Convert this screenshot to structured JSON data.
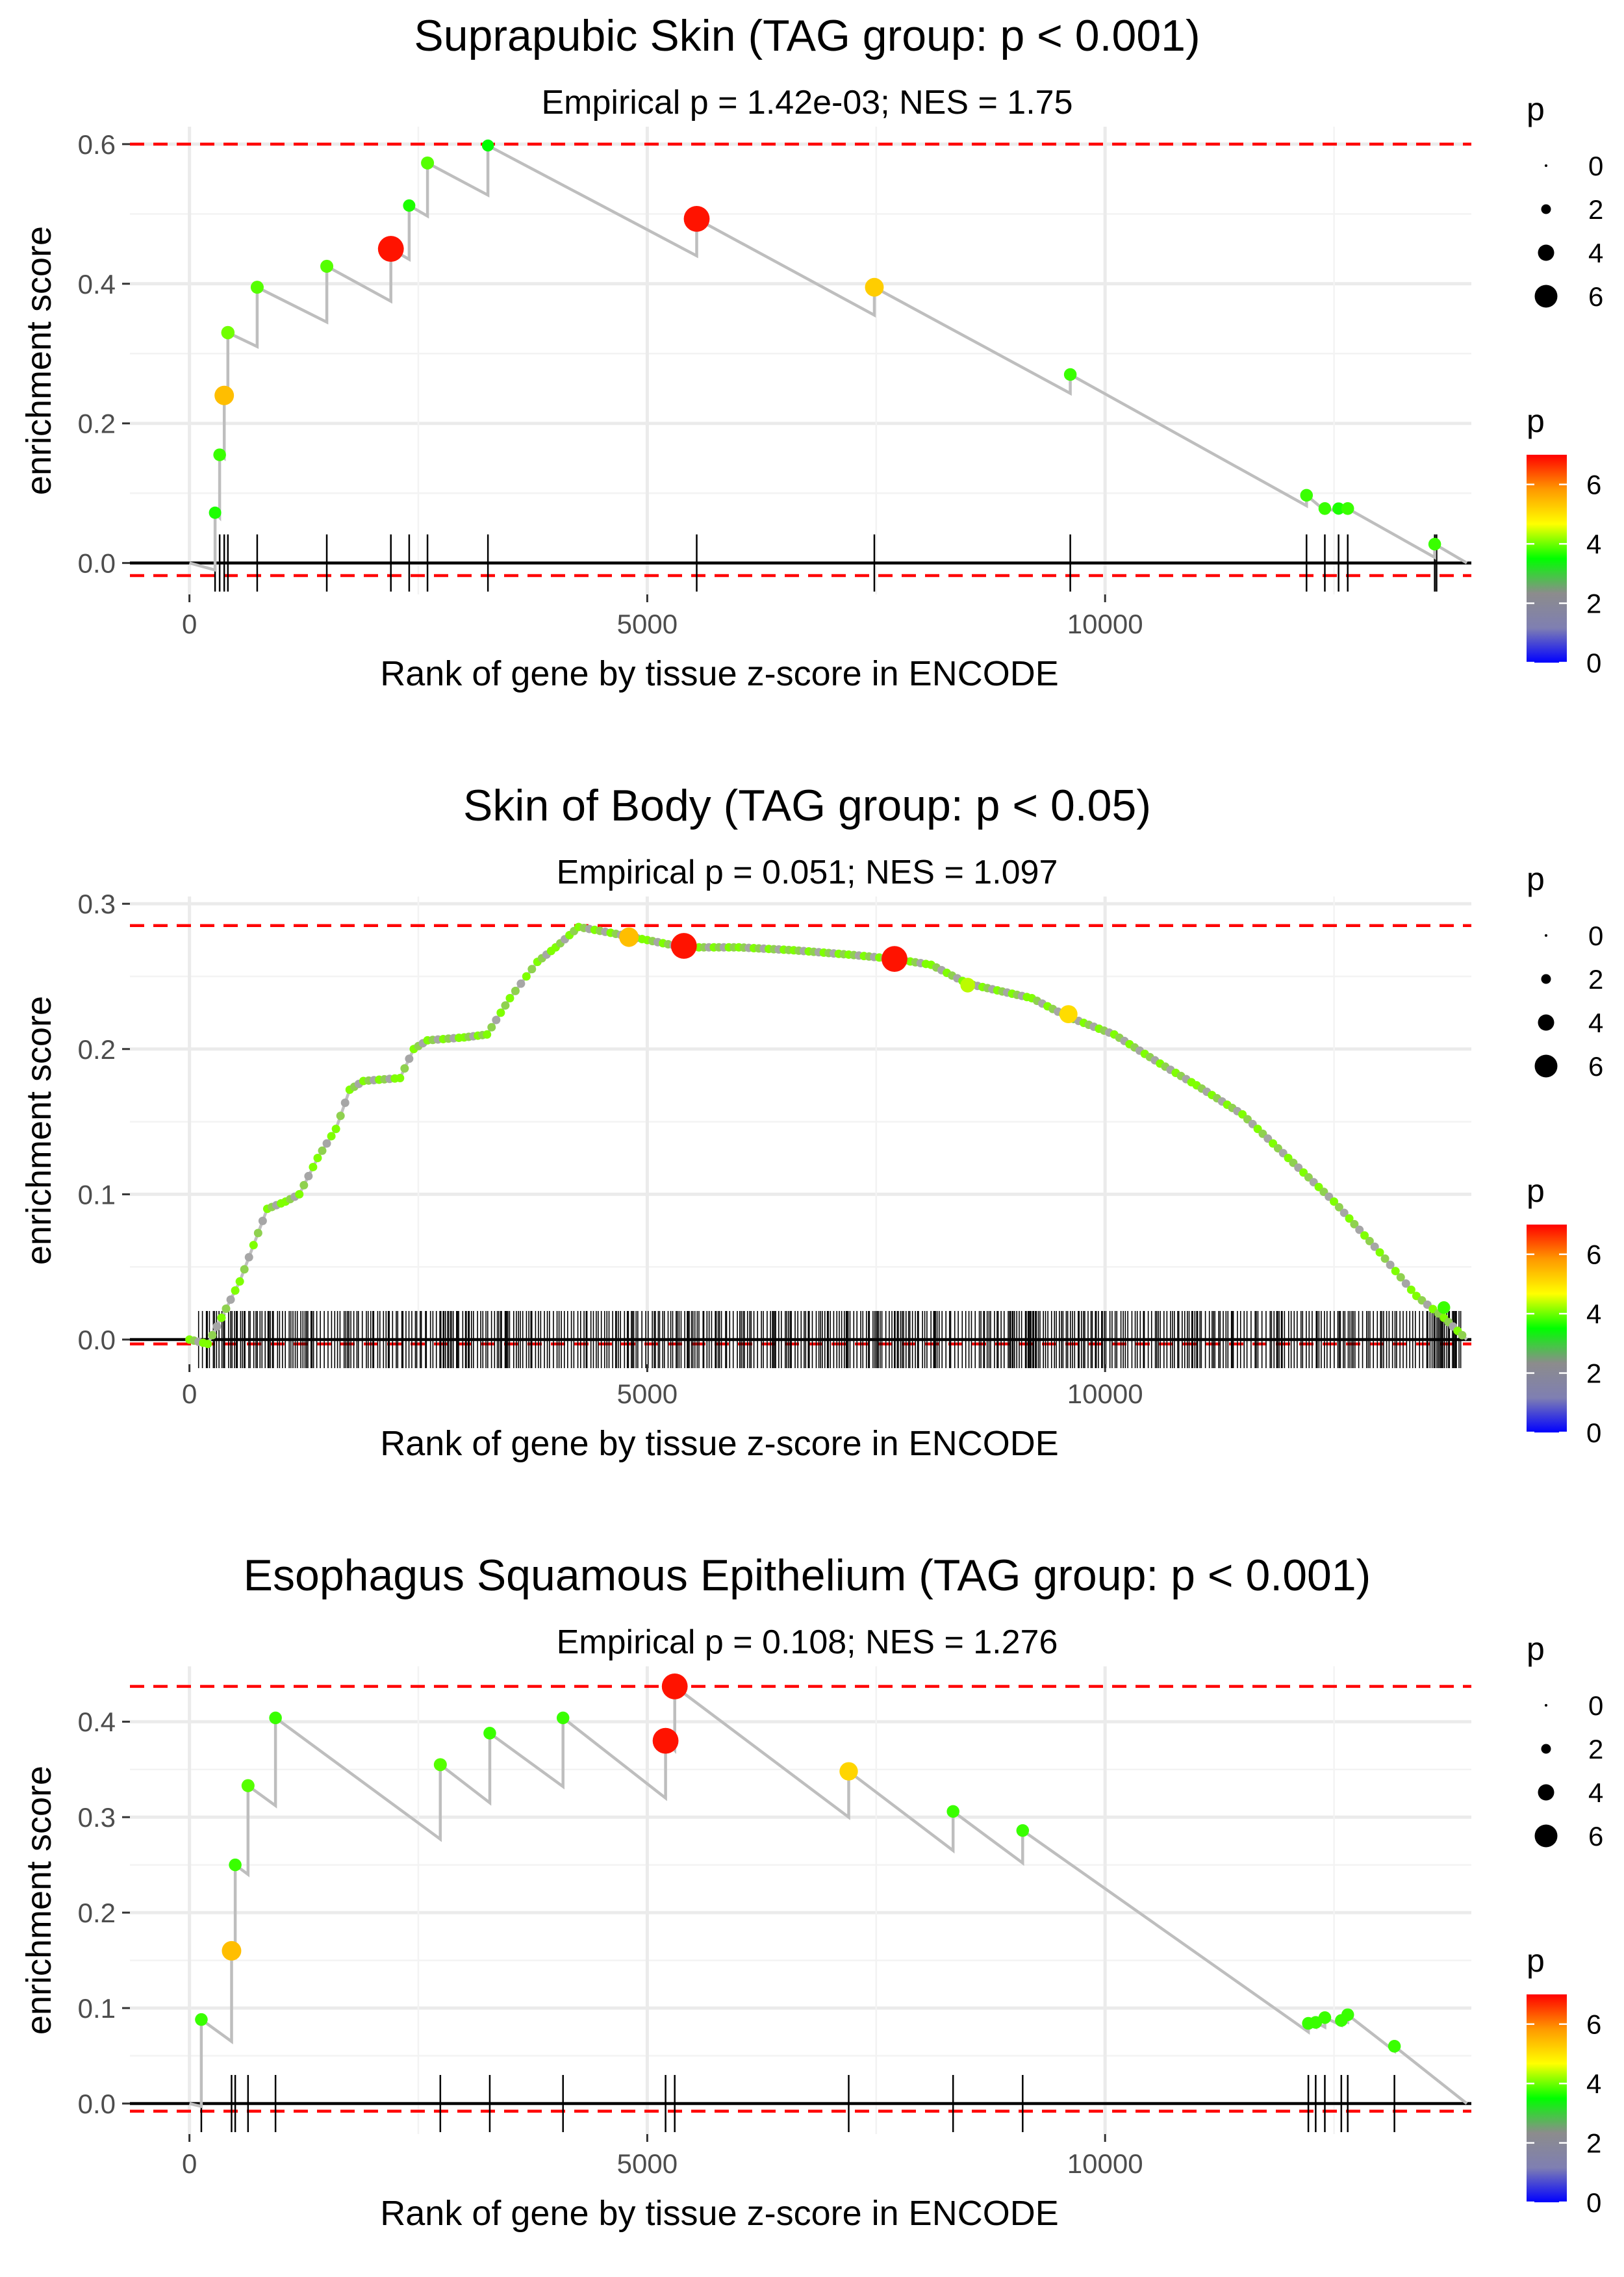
{
  "chart_data": [
    {
      "type": "line",
      "title": "Suprapubic Skin (TAG group: p < 0.001)",
      "subtitle": "Empirical p = 1.42e-03; NES = 1.75",
      "xlabel": "Rank of gene by tissue z-score in ENCODE",
      "ylabel": "enrichment score",
      "xlim": [
        -650,
        14000
      ],
      "ylim": [
        -0.045,
        0.625
      ],
      "xticks": [
        0,
        5000,
        10000
      ],
      "xtick_labels": [
        "0",
        "5000",
        "10000"
      ],
      "yticks": [
        0.0,
        0.2,
        0.4,
        0.6
      ],
      "ytick_labels": [
        "0.0",
        "0.2",
        "0.4",
        "0.6"
      ],
      "max_es": 0.6,
      "min_es": -0.018,
      "running_es": [
        [
          0,
          0
        ],
        [
          280,
          -0.01
        ],
        [
          280,
          0.072
        ],
        [
          330,
          0.065
        ],
        [
          330,
          0.155
        ],
        [
          380,
          0.15
        ],
        [
          380,
          0.24
        ],
        [
          420,
          0.235
        ],
        [
          420,
          0.33
        ],
        [
          740,
          0.31
        ],
        [
          740,
          0.395
        ],
        [
          1500,
          0.345
        ],
        [
          1500,
          0.425
        ],
        [
          2200,
          0.375
        ],
        [
          2200,
          0.45
        ],
        [
          2400,
          0.435
        ],
        [
          2400,
          0.512
        ],
        [
          2600,
          0.497
        ],
        [
          2600,
          0.573
        ],
        [
          3260,
          0.527
        ],
        [
          3260,
          0.598
        ],
        [
          5540,
          0.44
        ],
        [
          5540,
          0.493
        ],
        [
          7480,
          0.355
        ],
        [
          7480,
          0.395
        ],
        [
          9620,
          0.243
        ],
        [
          9620,
          0.27
        ],
        [
          12200,
          0.082
        ],
        [
          12200,
          0.097
        ],
        [
          12400,
          0.075
        ],
        [
          12400,
          0.078
        ],
        [
          12550,
          0.074
        ],
        [
          12550,
          0.078
        ],
        [
          12650,
          0.075
        ],
        [
          12650,
          0.078
        ],
        [
          13600,
          0.008
        ],
        [
          13600,
          0.027
        ],
        [
          13950,
          0.0
        ]
      ],
      "points": [
        {
          "x": 280,
          "y": 0.072,
          "p": 2.5
        },
        {
          "x": 330,
          "y": 0.155,
          "p": 2.6
        },
        {
          "x": 380,
          "y": 0.24,
          "p": 4.6
        },
        {
          "x": 420,
          "y": 0.33,
          "p": 2.8
        },
        {
          "x": 740,
          "y": 0.395,
          "p": 2.7
        },
        {
          "x": 1500,
          "y": 0.425,
          "p": 2.7
        },
        {
          "x": 2200,
          "y": 0.45,
          "p": 6.5
        },
        {
          "x": 2400,
          "y": 0.512,
          "p": 2.5
        },
        {
          "x": 2600,
          "y": 0.573,
          "p": 2.7
        },
        {
          "x": 3260,
          "y": 0.598,
          "p": 2.4
        },
        {
          "x": 5540,
          "y": 0.493,
          "p": 6.5
        },
        {
          "x": 7480,
          "y": 0.395,
          "p": 4.4
        },
        {
          "x": 9620,
          "y": 0.27,
          "p": 2.6
        },
        {
          "x": 12200,
          "y": 0.097,
          "p": 2.6
        },
        {
          "x": 12400,
          "y": 0.078,
          "p": 2.6
        },
        {
          "x": 12550,
          "y": 0.078,
          "p": 2.5
        },
        {
          "x": 12650,
          "y": 0.078,
          "p": 2.6
        },
        {
          "x": 13600,
          "y": 0.027,
          "p": 2.6
        }
      ],
      "gene_ranks": [
        280,
        330,
        380,
        420,
        740,
        1500,
        2200,
        2400,
        2600,
        3260,
        5540,
        7480,
        9620,
        12200,
        12400,
        12550,
        12650,
        13600,
        13620
      ],
      "dense": false,
      "legend_size": {
        "title": "p",
        "labels": [
          "0",
          "2",
          "4",
          "6"
        ]
      },
      "legend_color": {
        "title": "p",
        "labels": [
          "6",
          "4",
          "2",
          "0"
        ]
      }
    },
    {
      "type": "line",
      "title": "Skin of Body (TAG group: p < 0.05)",
      "subtitle": "Empirical p = 0.051; NES = 1.097",
      "xlabel": "Rank of gene by tissue z-score in ENCODE",
      "ylabel": "enrichment score",
      "xlim": [
        -650,
        14000
      ],
      "ylim": [
        -0.017,
        0.305
      ],
      "xticks": [
        0,
        5000,
        10000
      ],
      "xtick_labels": [
        "0",
        "5000",
        "10000"
      ],
      "yticks": [
        0.0,
        0.1,
        0.2,
        0.3
      ],
      "ytick_labels": [
        "0.0",
        "0.1",
        "0.2",
        "0.3"
      ],
      "max_es": 0.285,
      "min_es": -0.003,
      "running_es": [
        [
          0,
          0
        ],
        [
          200,
          -0.003
        ],
        [
          350,
          0.015
        ],
        [
          550,
          0.04
        ],
        [
          700,
          0.065
        ],
        [
          850,
          0.09
        ],
        [
          1050,
          0.095
        ],
        [
          1200,
          0.1
        ],
        [
          1400,
          0.125
        ],
        [
          1600,
          0.145
        ],
        [
          1750,
          0.172
        ],
        [
          1900,
          0.178
        ],
        [
          2300,
          0.18
        ],
        [
          2450,
          0.2
        ],
        [
          2600,
          0.206
        ],
        [
          3000,
          0.208
        ],
        [
          3250,
          0.21
        ],
        [
          3500,
          0.235
        ],
        [
          3800,
          0.26
        ],
        [
          4000,
          0.27
        ],
        [
          4250,
          0.284
        ],
        [
          4600,
          0.28
        ],
        [
          5000,
          0.275
        ],
        [
          5400,
          0.27
        ],
        [
          6000,
          0.27
        ],
        [
          6600,
          0.268
        ],
        [
          7200,
          0.265
        ],
        [
          7700,
          0.262
        ],
        [
          8100,
          0.258
        ],
        [
          8500,
          0.245
        ],
        [
          9200,
          0.235
        ],
        [
          9600,
          0.222
        ],
        [
          10100,
          0.21
        ],
        [
          10600,
          0.19
        ],
        [
          11000,
          0.175
        ],
        [
          11500,
          0.155
        ],
        [
          12000,
          0.125
        ],
        [
          12500,
          0.095
        ],
        [
          13000,
          0.06
        ],
        [
          13400,
          0.03
        ],
        [
          13700,
          0.015
        ],
        [
          13950,
          0.0
        ]
      ],
      "points": [
        {
          "x": 4800,
          "y": 0.277,
          "p": 4.6
        },
        {
          "x": 5400,
          "y": 0.271,
          "p": 6.5
        },
        {
          "x": 7700,
          "y": 0.262,
          "p": 6.5
        },
        {
          "x": 9600,
          "y": 0.224,
          "p": 4.2
        },
        {
          "x": 8500,
          "y": 0.244,
          "p": 3.2
        },
        {
          "x": 13700,
          "y": 0.022,
          "p": 2.6
        }
      ],
      "gene_ranks": [],
      "dense": true,
      "dense_range": [
        100,
        13900
      ],
      "legend_size": {
        "title": "p",
        "labels": [
          "0",
          "2",
          "4",
          "6"
        ]
      },
      "legend_color": {
        "title": "p",
        "labels": [
          "6",
          "4",
          "2",
          "0"
        ]
      }
    },
    {
      "type": "line",
      "title": "Esophagus Squamous Epithelium (TAG group: p < 0.001)",
      "subtitle": "Empirical p = 0.108; NES = 1.276",
      "xlabel": "Rank of gene by tissue z-score in ENCODE",
      "ylabel": "enrichment score",
      "xlim": [
        -650,
        14000
      ],
      "ylim": [
        -0.032,
        0.458
      ],
      "xticks": [
        0,
        5000,
        10000
      ],
      "xtick_labels": [
        "0",
        "5000",
        "10000"
      ],
      "yticks": [
        0.0,
        0.1,
        0.2,
        0.3,
        0.4
      ],
      "ytick_labels": [
        "0.0",
        "0.1",
        "0.2",
        "0.3",
        "0.4"
      ],
      "max_es": 0.437,
      "min_es": -0.008,
      "running_es": [
        [
          0,
          0
        ],
        [
          130,
          -0.003
        ],
        [
          130,
          0.088
        ],
        [
          460,
          0.065
        ],
        [
          460,
          0.16
        ],
        [
          500,
          0.155
        ],
        [
          500,
          0.25
        ],
        [
          640,
          0.24
        ],
        [
          640,
          0.333
        ],
        [
          940,
          0.312
        ],
        [
          940,
          0.404
        ],
        [
          2740,
          0.277
        ],
        [
          2740,
          0.355
        ],
        [
          3280,
          0.315
        ],
        [
          3280,
          0.388
        ],
        [
          4080,
          0.332
        ],
        [
          4080,
          0.404
        ],
        [
          5200,
          0.32
        ],
        [
          5200,
          0.38
        ],
        [
          5300,
          0.37
        ],
        [
          5300,
          0.437
        ],
        [
          7200,
          0.3
        ],
        [
          7200,
          0.348
        ],
        [
          8340,
          0.265
        ],
        [
          8340,
          0.306
        ],
        [
          9100,
          0.252
        ],
        [
          9100,
          0.286
        ],
        [
          12220,
          0.075
        ],
        [
          12220,
          0.084
        ],
        [
          12300,
          0.08
        ],
        [
          12300,
          0.085
        ],
        [
          12400,
          0.08
        ],
        [
          12400,
          0.09
        ],
        [
          12580,
          0.082
        ],
        [
          12580,
          0.087
        ],
        [
          12650,
          0.085
        ],
        [
          12650,
          0.093
        ],
        [
          13160,
          0.055
        ],
        [
          13160,
          0.06
        ],
        [
          13950,
          0.0
        ]
      ],
      "points": [
        {
          "x": 130,
          "y": 0.088,
          "p": 2.6
        },
        {
          "x": 460,
          "y": 0.16,
          "p": 4.6
        },
        {
          "x": 500,
          "y": 0.25,
          "p": 2.6
        },
        {
          "x": 640,
          "y": 0.333,
          "p": 2.7
        },
        {
          "x": 940,
          "y": 0.404,
          "p": 2.6
        },
        {
          "x": 2740,
          "y": 0.355,
          "p": 2.7
        },
        {
          "x": 3280,
          "y": 0.388,
          "p": 2.6
        },
        {
          "x": 4080,
          "y": 0.404,
          "p": 2.6
        },
        {
          "x": 5200,
          "y": 0.38,
          "p": 6.5
        },
        {
          "x": 5300,
          "y": 0.437,
          "p": 6.5
        },
        {
          "x": 7200,
          "y": 0.348,
          "p": 4.3
        },
        {
          "x": 8340,
          "y": 0.306,
          "p": 2.6
        },
        {
          "x": 9100,
          "y": 0.286,
          "p": 2.6
        },
        {
          "x": 12220,
          "y": 0.084,
          "p": 2.6
        },
        {
          "x": 12300,
          "y": 0.085,
          "p": 2.6
        },
        {
          "x": 12400,
          "y": 0.09,
          "p": 2.6
        },
        {
          "x": 12580,
          "y": 0.087,
          "p": 2.6
        },
        {
          "x": 12650,
          "y": 0.093,
          "p": 2.6
        },
        {
          "x": 13160,
          "y": 0.06,
          "p": 2.6
        }
      ],
      "gene_ranks": [
        130,
        460,
        500,
        640,
        940,
        2740,
        3280,
        4080,
        5200,
        5300,
        7200,
        8340,
        9100,
        12220,
        12300,
        12400,
        12580,
        12650,
        13160
      ],
      "dense": false,
      "legend_size": {
        "title": "p",
        "labels": [
          "0",
          "2",
          "4",
          "6"
        ]
      },
      "legend_color": {
        "title": "p",
        "labels": [
          "6",
          "4",
          "2",
          "0"
        ]
      }
    }
  ],
  "colors": {
    "dashed_line": "#ff0000",
    "es_line": "#bebebe",
    "gridline": "#ebebeb",
    "gradient": [
      "#0000ff",
      "#7f7fb2",
      "#8c8c8c",
      "#00ff00",
      "#ffff00",
      "#ff9900",
      "#ff0000"
    ]
  }
}
